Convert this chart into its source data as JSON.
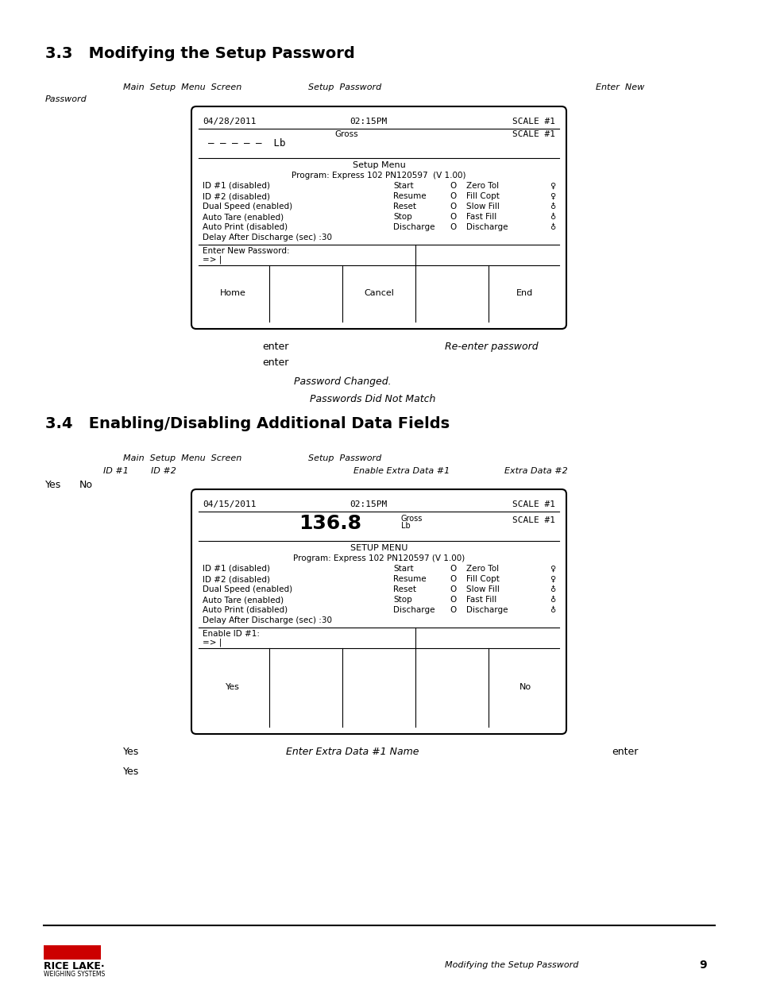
{
  "bg_color": "#ffffff",
  "section1_title": "3.3   Modifying the Setup Password",
  "section2_title": "3.4   Enabling/Disabling Additional Data Fields",
  "screen1": {
    "date": "04/28/2011",
    "time": "02:15PM",
    "scale": "SCALE #1",
    "weight_line1": "Gross",
    "weight_line2": "— — — — —  Lb",
    "weight_scale": "SCALE #1",
    "menu_title": "Setup Menu",
    "program_line": "Program: Express 102 PN120597  (V 1.00)",
    "left_col": [
      "ID #1 (disabled)",
      "ID #2 (disabled)",
      "Dual Speed (enabled)",
      "Auto Tare (enabled)",
      "Auto Print (disabled)",
      "Delay After Discharge (sec) :30"
    ],
    "mid_col": [
      "Start",
      "Resume",
      "Reset",
      "Stop",
      "Discharge"
    ],
    "o_col": [
      "O",
      "O",
      "O",
      "O",
      "O"
    ],
    "right_col": [
      "Zero Tol",
      "Fill Copt",
      "Slow Fill",
      "Fast Fill",
      "Discharge"
    ],
    "input_label": "Enter New Password:",
    "input_value": "=> |",
    "buttons": [
      "Home",
      "",
      "Cancel",
      "",
      "End"
    ]
  },
  "screen2": {
    "date": "04/15/2011",
    "time": "02:15PM",
    "scale": "SCALE #1",
    "weight_big": "136.8",
    "weight_sup1": "Gross",
    "weight_sup2": "Lb",
    "weight_scale": "SCALE #1",
    "menu_title": "SETUP MENU",
    "program_line": "Program: Express 102 PN120597 (V 1.00)",
    "left_col": [
      "ID #1 (disabled)",
      "ID #2 (disabled)",
      "Dual Speed (enabled)",
      "Auto Tare (enabled)",
      "Auto Print (disabled)",
      "Delay After Discharge (sec) :30"
    ],
    "mid_col": [
      "Start",
      "Resume",
      "Reset",
      "Stop",
      "Discharge"
    ],
    "o_col": [
      "O",
      "O",
      "O",
      "O",
      "O"
    ],
    "right_col": [
      "Zero Tol",
      "Fill Copt",
      "Slow Fill",
      "Fast Fill",
      "Discharge"
    ],
    "input_label": "Enable ID #1:",
    "input_value": "=> |",
    "buttons": [
      "Yes",
      "",
      "",
      "",
      "No"
    ]
  },
  "footer_text": "Modifying the Setup Password",
  "footer_page": "9",
  "logo_color": "#cc0000"
}
